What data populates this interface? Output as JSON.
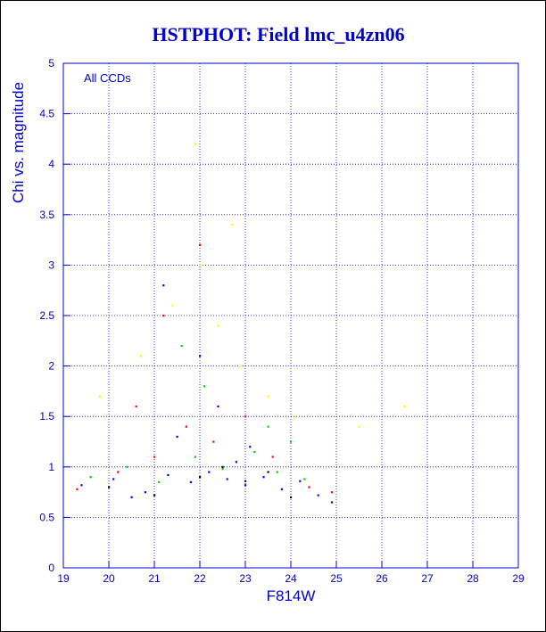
{
  "colors": {
    "text": "#0000cc",
    "grid": "#0000cc",
    "axis": "#0000cc",
    "series": [
      "#0000ff",
      "#00cc00",
      "#ff0000",
      "#ffff00",
      "#000000"
    ]
  },
  "chart_data": {
    "type": "scatter",
    "title": "HSTPHOT: Field lmc_u4zn06",
    "xlabel": "F814W",
    "ylabel": "Chi vs. magnitude",
    "annotation": "All CCDs",
    "xlim": [
      19,
      29
    ],
    "ylim": [
      0,
      5
    ],
    "xticks": [
      "19",
      "20",
      "21",
      "22",
      "23",
      "24",
      "25",
      "26",
      "27",
      "28",
      "29"
    ],
    "yticks": [
      "0",
      "0.5",
      "1",
      "1.5",
      "2",
      "2.5",
      "3",
      "3.5",
      "4",
      "4.5",
      "5"
    ],
    "grid": true,
    "series": [
      {
        "color": "#0000ff",
        "points": [
          [
            19.4,
            0.82
          ],
          [
            20.1,
            0.88
          ],
          [
            20.8,
            0.75
          ],
          [
            21.3,
            0.92
          ],
          [
            21.8,
            0.85
          ],
          [
            22.2,
            0.95
          ],
          [
            22.6,
            0.88
          ],
          [
            23.0,
            0.82
          ],
          [
            23.4,
            0.9
          ],
          [
            23.8,
            0.78
          ],
          [
            24.2,
            0.86
          ],
          [
            24.6,
            0.72
          ],
          [
            21.5,
            1.3
          ],
          [
            22.4,
            1.6
          ],
          [
            23.1,
            1.2
          ],
          [
            22.0,
            2.1
          ],
          [
            21.2,
            2.8
          ],
          [
            22.8,
            1.05
          ],
          [
            20.5,
            0.7
          ],
          [
            24.9,
            0.65
          ]
        ]
      },
      {
        "color": "#00cc00",
        "points": [
          [
            19.6,
            0.9
          ],
          [
            20.4,
            1.0
          ],
          [
            21.1,
            0.85
          ],
          [
            21.9,
            1.1
          ],
          [
            22.5,
            0.98
          ],
          [
            23.2,
            1.15
          ],
          [
            23.7,
            0.95
          ],
          [
            24.3,
            0.88
          ],
          [
            22.1,
            1.8
          ],
          [
            23.5,
            1.4
          ],
          [
            21.6,
            2.2
          ],
          [
            24.0,
            1.25
          ]
        ]
      },
      {
        "color": "#ff0000",
        "points": [
          [
            19.3,
            0.78
          ],
          [
            20.2,
            0.95
          ],
          [
            21.0,
            1.1
          ],
          [
            21.7,
            1.4
          ],
          [
            22.3,
            1.25
          ],
          [
            23.0,
            1.5
          ],
          [
            23.6,
            1.1
          ],
          [
            24.4,
            0.8
          ],
          [
            24.9,
            0.75
          ],
          [
            21.2,
            2.5
          ],
          [
            22.0,
            3.2
          ],
          [
            20.6,
            1.6
          ]
        ]
      },
      {
        "color": "#ffff00",
        "points": [
          [
            19.8,
            1.7
          ],
          [
            20.7,
            2.1
          ],
          [
            21.4,
            2.6
          ],
          [
            22.0,
            3.0
          ],
          [
            22.4,
            2.4
          ],
          [
            22.9,
            2.0
          ],
          [
            23.5,
            1.7
          ],
          [
            24.1,
            1.5
          ],
          [
            25.5,
            1.4
          ],
          [
            26.5,
            1.6
          ],
          [
            21.9,
            4.2
          ],
          [
            22.7,
            3.4
          ]
        ]
      },
      {
        "color": "#000000",
        "points": [
          [
            20.0,
            0.8
          ],
          [
            21.0,
            0.72
          ],
          [
            22.0,
            0.9
          ],
          [
            23.0,
            0.86
          ],
          [
            24.0,
            0.7
          ],
          [
            22.5,
            1.0
          ],
          [
            23.5,
            0.95
          ]
        ]
      }
    ]
  }
}
